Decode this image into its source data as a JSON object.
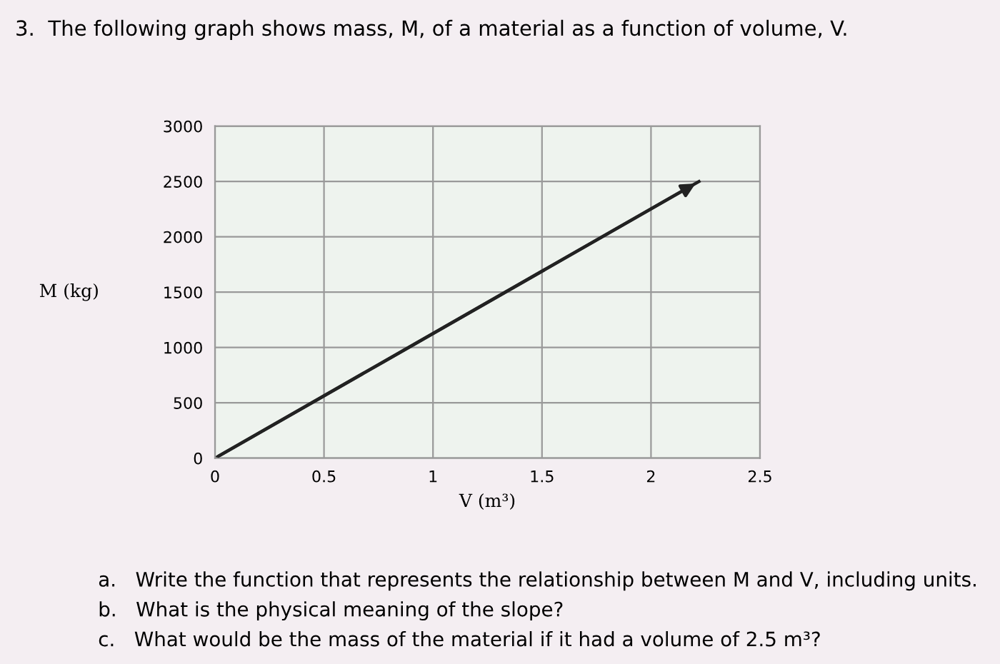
{
  "chart_data": {
    "type": "line",
    "title": "3.  The following graph shows mass, M, of a material as a function of volume, V.",
    "xlabel": "V (m³)",
    "ylabel": "M (kg)",
    "series": [
      {
        "color": "#222222",
        "x": [
          0,
          2.22
        ],
        "values": [
          0,
          2500
        ]
      }
    ],
    "xlim": [
      0,
      2.5
    ],
    "xticks": [
      0,
      0.5,
      1,
      1.5,
      2,
      2.5
    ],
    "ylim": [
      0,
      3000
    ],
    "yticks": [
      0,
      500,
      1000,
      1500,
      2000,
      2500,
      3000
    ],
    "grid": true,
    "marker": "none",
    "line_style": "solid",
    "annotations": [
      "a.   Write the function that represents the relationship between M and V, including units.",
      "b.   What is the physical meaning of the slope?",
      "c.   What would be the mass of the material if it had a volume of 2.5 m³?"
    ]
  }
}
